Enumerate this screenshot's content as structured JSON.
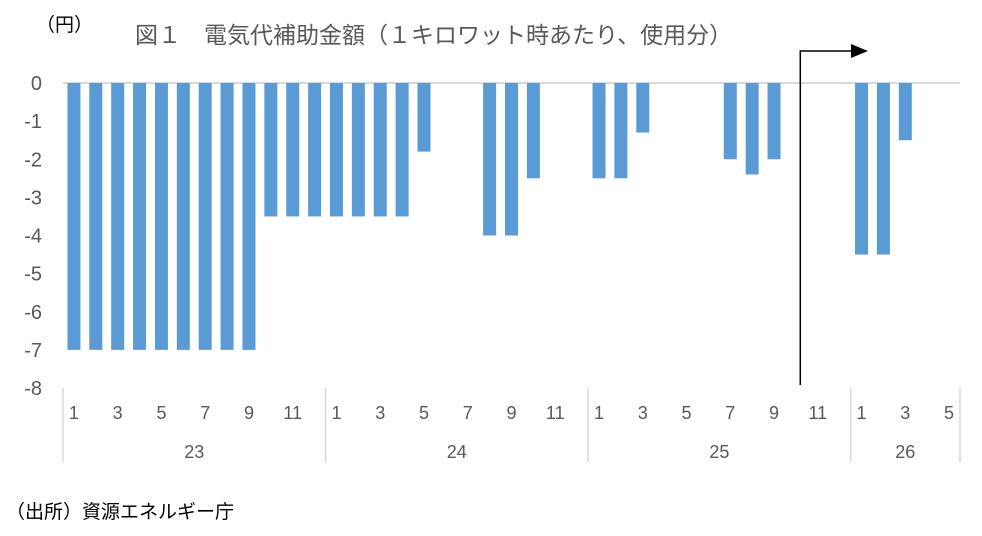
{
  "chart_data": {
    "type": "bar",
    "title": "図１　電気代補助金額（１キロワット時あたり、使用分）",
    "ylabel": "（円）",
    "source": "（出所）資源エネルギー庁",
    "ylim": [
      -8,
      0
    ],
    "yticks": [
      "0",
      "-1",
      "-2",
      "-3",
      "-4",
      "-5",
      "-6",
      "-7",
      "-8"
    ],
    "years": [
      {
        "label": "23",
        "months": 12
      },
      {
        "label": "24",
        "months": 12
      },
      {
        "label": "25",
        "months": 12
      },
      {
        "label": "26",
        "months": 5
      }
    ],
    "month_tick_labels": [
      "1",
      "3",
      "5",
      "7",
      "9",
      "11"
    ],
    "values": [
      -7,
      -7,
      -7,
      -7,
      -7,
      -7,
      -7,
      -7,
      -7,
      -3.5,
      -3.5,
      -3.5,
      -3.5,
      -3.5,
      -3.5,
      -3.5,
      -1.8,
      0,
      0,
      -4,
      -4,
      -2.5,
      0,
      0,
      -2.5,
      -2.5,
      -1.3,
      0,
      0,
      0,
      -2,
      -2.4,
      -2,
      0,
      0,
      0,
      -4.5,
      -4.5,
      -1.5,
      0,
      0
    ],
    "bar_color": "#5b9bd5",
    "grid": false,
    "annotation": "arrow from October 2025 pointing right"
  }
}
